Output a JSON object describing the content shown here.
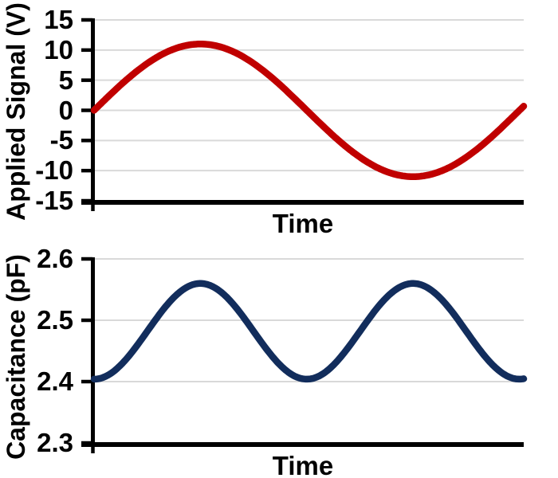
{
  "figure": {
    "background": "#ffffff",
    "text_color": "#000000"
  },
  "chart_data": [
    {
      "name": "applied-signal-vs-time",
      "type": "line",
      "title": "",
      "xlabel": "Time",
      "ylabel": "Applied Signal (V)",
      "ylim": [
        -15,
        15
      ],
      "grid": true,
      "grid_color": "#d9d9d9",
      "axis_color": "#000000",
      "legend": "none",
      "yticks": [
        {
          "value": 15,
          "label": "15"
        },
        {
          "value": 10,
          "label": "10"
        },
        {
          "value": 5,
          "label": "5"
        },
        {
          "value": 0,
          "label": "0"
        },
        {
          "value": -5,
          "label": "-5"
        },
        {
          "value": -10,
          "label": "-10"
        },
        {
          "value": -15,
          "label": "-15"
        }
      ],
      "series": [
        {
          "name": "applied-signal",
          "color": "#c00000",
          "stroke_width": 8.5,
          "model": {
            "kind": "sine",
            "mean": 0,
            "amplitude": 11,
            "periods": 1.01,
            "phase_deg": 0
          },
          "key_points": [
            {
              "t_frac": 0.0,
              "value": 0
            },
            {
              "t_frac": 0.247,
              "value": 11
            },
            {
              "t_frac": 0.495,
              "value": 0
            },
            {
              "t_frac": 0.743,
              "value": -11
            },
            {
              "t_frac": 0.99,
              "value": 0
            },
            {
              "t_frac": 1.0,
              "value": 0.7
            }
          ]
        }
      ]
    },
    {
      "name": "capacitance-vs-time",
      "type": "line",
      "title": "",
      "xlabel": "Time",
      "ylabel": "Capacitance (pF)",
      "ylim": [
        2.3,
        2.6
      ],
      "grid": true,
      "grid_color": "#d9d9d9",
      "axis_color": "#000000",
      "legend": "none",
      "yticks": [
        {
          "value": 2.6,
          "label": "2.6"
        },
        {
          "value": 2.5,
          "label": "2.5"
        },
        {
          "value": 2.4,
          "label": "2.4"
        },
        {
          "value": 2.3,
          "label": "2.3"
        }
      ],
      "series": [
        {
          "name": "capacitance",
          "color": "#122d5c",
          "stroke_width": 8.5,
          "model": {
            "kind": "sine-squared",
            "base": 2.404,
            "amplitude": 0.156,
            "periods": 1.01,
            "phase_deg": 0
          },
          "key_points": [
            {
              "t_frac": 0.0,
              "value": 2.404
            },
            {
              "t_frac": 0.247,
              "value": 2.56
            },
            {
              "t_frac": 0.495,
              "value": 2.404
            },
            {
              "t_frac": 0.743,
              "value": 2.56
            },
            {
              "t_frac": 1.0,
              "value": 2.405
            }
          ]
        }
      ]
    }
  ]
}
